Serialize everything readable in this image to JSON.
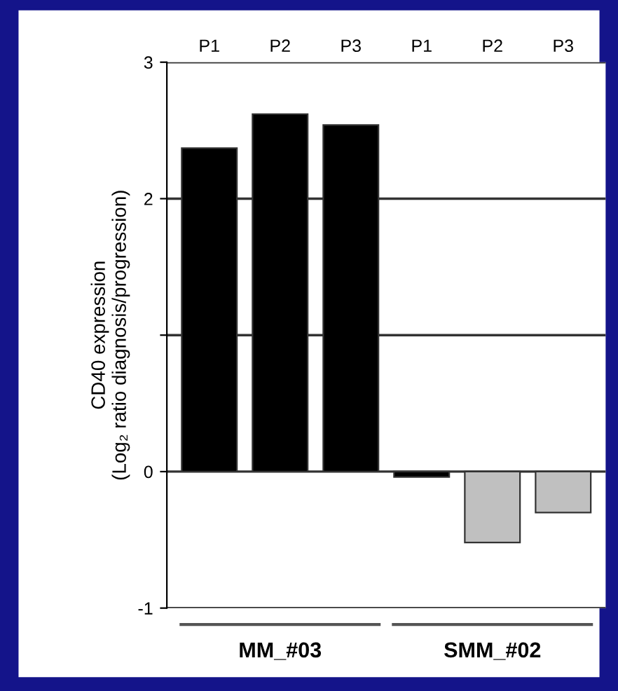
{
  "chart_data": {
    "type": "bar",
    "ylabel": "CD40 expression\n(Log₂ ratio diagnosis/progression)",
    "categories": [
      "P1",
      "P2",
      "P3",
      "P1",
      "P2",
      "P3"
    ],
    "values": [
      2.37,
      2.62,
      2.54,
      -0.04,
      -0.52,
      -0.3
    ],
    "colors": [
      "#000000",
      "#000000",
      "#000000",
      "#000000",
      "#c0c0c0",
      "#c0c0c0"
    ],
    "ylim": [
      -1,
      3
    ],
    "yticks": [
      -1,
      0,
      {
        "value": 1,
        "label": null
      },
      2,
      3
    ],
    "grid": "y",
    "annotations": [
      "MM_#03",
      "SMM_#02"
    ]
  }
}
